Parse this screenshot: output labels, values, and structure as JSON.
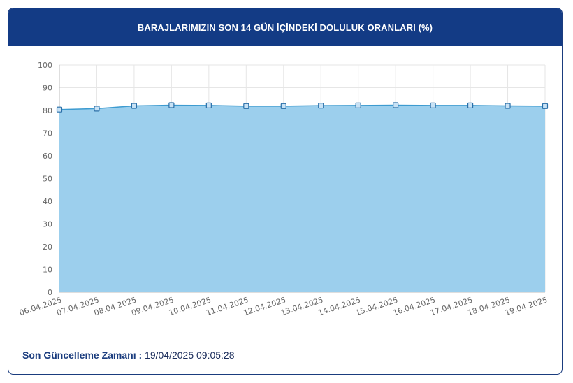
{
  "header": {
    "title": "BARAJLARIMIZIN SON 14 GÜN İÇİNDEKİ DOLULUK ORANLARI (%)"
  },
  "update": {
    "label": "Son Güncelleme Zamanı :",
    "value": "19/04/2025 09:05:28"
  },
  "colors": {
    "header_bg": "#133b85",
    "area_fill": "#9ccfed",
    "line": "#3d9bd0",
    "marker_fill": "#c8e2f5",
    "marker_stroke": "#2a6fa8",
    "grid": "#e6e6e6"
  },
  "chart_data": {
    "type": "area",
    "title": "BARAJLARIMIZIN SON 14 GÜN İÇİNDEKİ DOLULUK ORANLARI (%)",
    "xlabel": "",
    "ylabel": "",
    "ylim": [
      0,
      100
    ],
    "yticks": [
      "0",
      "10",
      "20",
      "30",
      "40",
      "50",
      "60",
      "70",
      "80",
      "90",
      "100"
    ],
    "grid": true,
    "legend": "none",
    "categories": [
      "06.04.2025",
      "07.04.2025",
      "08.04.2025",
      "09.04.2025",
      "10.04.2025",
      "11.04.2025",
      "12.04.2025",
      "13.04.2025",
      "14.04.2025",
      "15.04.2025",
      "16.04.2025",
      "17.04.2025",
      "18.04.2025",
      "19.04.2025"
    ],
    "values": [
      80.4,
      80.8,
      82.0,
      82.3,
      82.2,
      81.9,
      81.9,
      82.1,
      82.2,
      82.3,
      82.2,
      82.2,
      82.0,
      81.9
    ]
  }
}
